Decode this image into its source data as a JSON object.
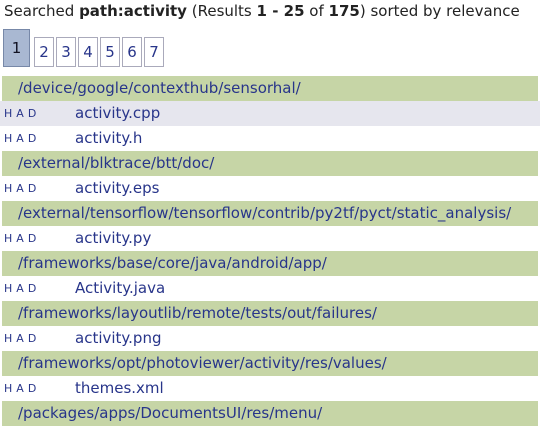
{
  "header": {
    "parts": [
      {
        "text": "Searched ",
        "bold": false
      },
      {
        "text": "path:activity",
        "bold": true
      },
      {
        "text": " (Results ",
        "bold": false
      },
      {
        "text": "1 - 25",
        "bold": true
      },
      {
        "text": " of ",
        "bold": false
      },
      {
        "text": "175",
        "bold": true
      },
      {
        "text": ") sorted by relevance",
        "bold": false
      }
    ]
  },
  "pages": {
    "items": [
      "1",
      "2",
      "3",
      "4",
      "5",
      "6",
      "7"
    ],
    "selected": 0
  },
  "results": {
    "highlighted": 1,
    "rows": [
      {
        "kind": "dir",
        "text": "/device/google/contexthub/sensorhal/"
      },
      {
        "kind": "file",
        "actions": [
          "H",
          "A",
          "D"
        ],
        "text": "activity.cpp"
      },
      {
        "kind": "file",
        "actions": [
          "H",
          "A",
          "D"
        ],
        "text": "activity.h"
      },
      {
        "kind": "dir",
        "text": "/external/blktrace/btt/doc/"
      },
      {
        "kind": "file",
        "actions": [
          "H",
          "A",
          "D"
        ],
        "text": "activity.eps"
      },
      {
        "kind": "dir",
        "text": "/external/tensorflow/tensorflow/contrib/py2tf/pyct/static_analysis/"
      },
      {
        "kind": "file",
        "actions": [
          "H",
          "A",
          "D"
        ],
        "text": "activity.py"
      },
      {
        "kind": "dir",
        "text": "/frameworks/base/core/java/android/app/"
      },
      {
        "kind": "file",
        "actions": [
          "H",
          "A",
          "D"
        ],
        "text": "Activity.java"
      },
      {
        "kind": "dir",
        "text": "/frameworks/layoutlib/remote/tests/out/failures/"
      },
      {
        "kind": "file",
        "actions": [
          "H",
          "A",
          "D"
        ],
        "text": "activity.png"
      },
      {
        "kind": "dir",
        "text": "/frameworks/opt/photoviewer/activity/res/values/"
      },
      {
        "kind": "file",
        "actions": [
          "H",
          "A",
          "D"
        ],
        "text": "themes.xml"
      },
      {
        "kind": "dir",
        "text": "/packages/apps/DocumentsUI/res/menu/"
      }
    ]
  }
}
